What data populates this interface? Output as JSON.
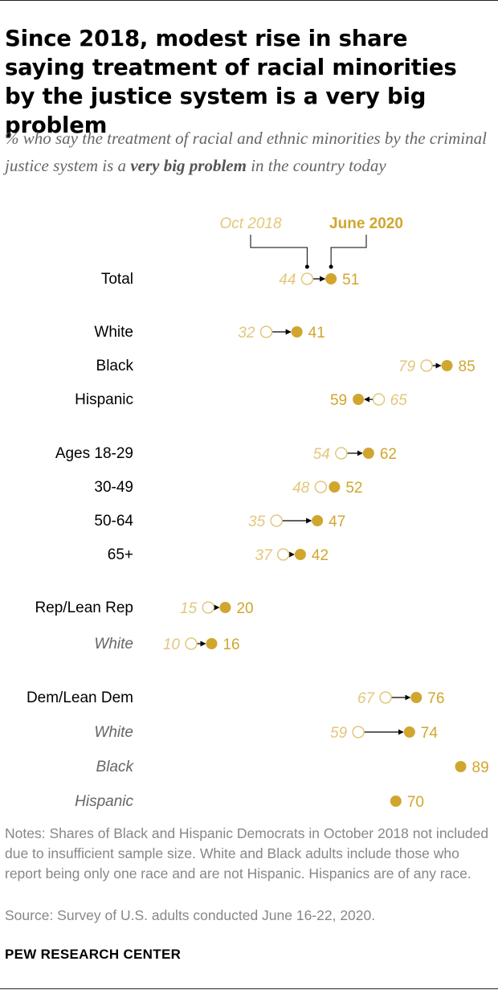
{
  "title": "Since 2018, modest rise in share saying treatment of racial minorities by the justice system is a very big problem",
  "subtitle": {
    "before": "% who say the treatment of racial and ethnic minorities by the criminal justice system is a ",
    "emphasis": "very big problem",
    "after": " in the country today"
  },
  "chart_data": {
    "type": "dot-arrow",
    "title": "Since 2018, modest rise in share saying treatment of racial minorities by the justice system is a very big problem",
    "legend": {
      "oct2018": "Oct 2018",
      "june2020": "June 2020"
    },
    "series": [
      {
        "name": "Oct 2018"
      },
      {
        "name": "June 2020"
      }
    ],
    "colors": {
      "oct2018": "#E3C77C",
      "june2020": "#D1A62F",
      "label": "#000000",
      "italic_label": "#666666",
      "arrow": "#000000"
    },
    "xlim": [
      0,
      100
    ],
    "rows": [
      {
        "label": "Total",
        "oct": 44,
        "june": 51,
        "italic": false
      },
      {
        "label": "White",
        "oct": 32,
        "june": 41,
        "italic": false
      },
      {
        "label": "Black",
        "oct": 79,
        "june": 85,
        "italic": false
      },
      {
        "label": "Hispanic",
        "oct": 65,
        "june": 59,
        "italic": false
      },
      {
        "label": "Ages 18-29",
        "oct": 54,
        "june": 62,
        "italic": false
      },
      {
        "label": "30-49",
        "oct": 48,
        "june": 52,
        "italic": false
      },
      {
        "label": "50-64",
        "oct": 35,
        "june": 47,
        "italic": false
      },
      {
        "label": "65+",
        "oct": 37,
        "june": 42,
        "italic": false
      },
      {
        "label": "Rep/Lean Rep",
        "oct": 15,
        "june": 20,
        "italic": false
      },
      {
        "label": "White",
        "oct": 10,
        "june": 16,
        "italic": true
      },
      {
        "label": "Dem/Lean Dem",
        "oct": 67,
        "june": 76,
        "italic": false
      },
      {
        "label": "White",
        "oct": 59,
        "june": 74,
        "italic": true
      },
      {
        "label": "Black",
        "oct": null,
        "june": 89,
        "italic": true
      },
      {
        "label": "Hispanic",
        "oct": null,
        "june": 70,
        "italic": true
      }
    ]
  },
  "notes": "Notes: Shares of Black and Hispanic Democrats in October 2018 not included due to insufficient sample size. White and Black adults include those who report being only one race and are not Hispanic. Hispanics are of any race.",
  "source": "Source: Survey of U.S. adults conducted June 16-22, 2020.",
  "brand": "PEW RESEARCH CENTER"
}
